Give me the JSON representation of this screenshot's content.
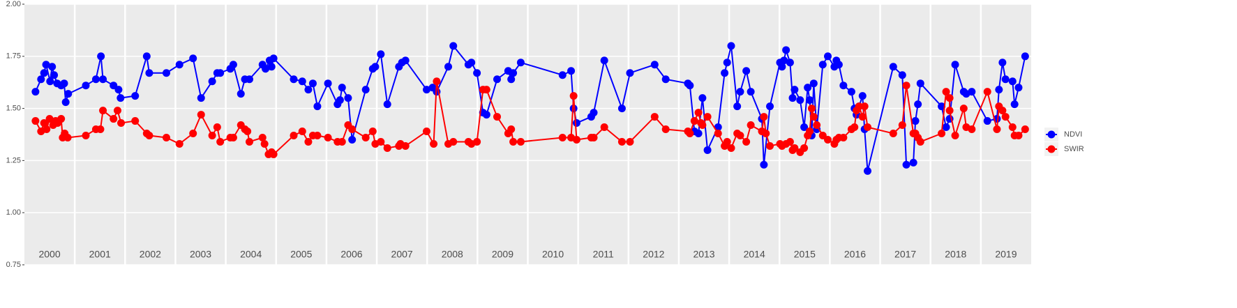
{
  "chart_data": {
    "type": "line",
    "xlim": [
      2000,
      2020
    ],
    "ylim": [
      0.75,
      2.0
    ],
    "yticks": [
      {
        "value": 0.75,
        "label": "0.75"
      },
      {
        "value": 1.0,
        "label": "1.00"
      },
      {
        "value": 1.25,
        "label": "1.25"
      },
      {
        "value": 1.5,
        "label": "1.50"
      },
      {
        "value": 1.75,
        "label": "1.75"
      },
      {
        "value": 2.0,
        "label": "2.00"
      }
    ],
    "xticks": [
      {
        "value": 2000.5,
        "label": "2000"
      },
      {
        "value": 2001.5,
        "label": "2001"
      },
      {
        "value": 2002.5,
        "label": "2002"
      },
      {
        "value": 2003.5,
        "label": "2003"
      },
      {
        "value": 2004.5,
        "label": "2004"
      },
      {
        "value": 2005.5,
        "label": "2005"
      },
      {
        "value": 2006.5,
        "label": "2006"
      },
      {
        "value": 2007.5,
        "label": "2007"
      },
      {
        "value": 2008.5,
        "label": "2008"
      },
      {
        "value": 2009.5,
        "label": "2009"
      },
      {
        "value": 2010.5,
        "label": "2010"
      },
      {
        "value": 2011.5,
        "label": "2011"
      },
      {
        "value": 2012.5,
        "label": "2012"
      },
      {
        "value": 2013.5,
        "label": "2013"
      },
      {
        "value": 2014.5,
        "label": "2014"
      },
      {
        "value": 2015.5,
        "label": "2015"
      },
      {
        "value": 2016.5,
        "label": "2016"
      },
      {
        "value": 2017.5,
        "label": "2017"
      },
      {
        "value": 2018.5,
        "label": "2018"
      },
      {
        "value": 2019.5,
        "label": "2019"
      }
    ],
    "xgrid": [
      2001,
      2002,
      2003,
      2004,
      2005,
      2006,
      2007,
      2008,
      2009,
      2010,
      2011,
      2012,
      2013,
      2014,
      2015,
      2016,
      2017,
      2018,
      2019
    ],
    "grid": true,
    "legend": "right",
    "series": [
      {
        "name": "NDVI",
        "color": "#0000ff",
        "x": [
          2000.22,
          2000.33,
          2000.39,
          2000.43,
          2000.51,
          2000.55,
          2000.59,
          2000.65,
          2000.73,
          2000.79,
          2000.82,
          2000.87,
          2001.22,
          2001.42,
          2001.52,
          2001.56,
          2001.77,
          2001.87,
          2001.91,
          2002.2,
          2002.43,
          2002.48,
          2002.82,
          2003.08,
          2003.35,
          2003.51,
          2003.73,
          2003.83,
          2003.89,
          2004.09,
          2004.15,
          2004.3,
          2004.38,
          2004.47,
          2004.73,
          2004.79,
          2004.87,
          2004.91,
          2004.95,
          2005.35,
          2005.52,
          2005.64,
          2005.73,
          2005.82,
          2006.03,
          2006.22,
          2006.27,
          2006.31,
          2006.43,
          2006.51,
          2006.78,
          2006.92,
          2006.97,
          2007.08,
          2007.21,
          2007.44,
          2007.5,
          2007.57,
          2007.99,
          2008.11,
          2008.19,
          2008.42,
          2008.52,
          2008.82,
          2008.88,
          2008.99,
          2009.11,
          2009.18,
          2009.39,
          2009.61,
          2009.67,
          2009.71,
          2009.86,
          2010.69,
          2010.86,
          2010.91,
          2010.97,
          2011.26,
          2011.31,
          2011.52,
          2011.87,
          2012.03,
          2012.52,
          2012.74,
          2013.18,
          2013.22,
          2013.31,
          2013.39,
          2013.47,
          2013.57,
          2013.78,
          2013.91,
          2013.96,
          2014.04,
          2014.16,
          2014.22,
          2014.34,
          2014.43,
          2014.65,
          2014.69,
          2014.81,
          2015.01,
          2015.05,
          2015.09,
          2015.13,
          2015.21,
          2015.26,
          2015.3,
          2015.41,
          2015.49,
          2015.56,
          2015.6,
          2015.64,
          2015.68,
          2015.74,
          2015.86,
          2015.96,
          2016.09,
          2016.13,
          2016.18,
          2016.27,
          2016.43,
          2016.49,
          2016.53,
          2016.58,
          2016.65,
          2016.69,
          2016.75,
          2017.26,
          2017.44,
          2017.52,
          2017.66,
          2017.7,
          2017.75,
          2017.8,
          2018.22,
          2018.31,
          2018.38,
          2018.49,
          2018.66,
          2018.71,
          2018.82,
          2019.13,
          2019.32,
          2019.36,
          2019.43,
          2019.49,
          2019.63,
          2019.67,
          2019.75,
          2019.88
        ],
        "values": [
          1.58,
          1.64,
          1.67,
          1.71,
          1.63,
          1.7,
          1.66,
          1.62,
          1.61,
          1.62,
          1.53,
          1.57,
          1.61,
          1.64,
          1.75,
          1.64,
          1.61,
          1.59,
          1.55,
          1.56,
          1.75,
          1.67,
          1.67,
          1.71,
          1.74,
          1.55,
          1.63,
          1.67,
          1.67,
          1.69,
          1.71,
          1.57,
          1.64,
          1.64,
          1.71,
          1.69,
          1.73,
          1.7,
          1.74,
          1.64,
          1.63,
          1.59,
          1.62,
          1.51,
          1.62,
          1.52,
          1.54,
          1.6,
          1.55,
          1.35,
          1.59,
          1.69,
          1.7,
          1.76,
          1.52,
          1.7,
          1.72,
          1.73,
          1.59,
          1.6,
          1.58,
          1.7,
          1.8,
          1.71,
          1.72,
          1.67,
          1.48,
          1.47,
          1.64,
          1.68,
          1.64,
          1.67,
          1.72,
          1.66,
          1.68,
          1.5,
          1.43,
          1.46,
          1.48,
          1.73,
          1.5,
          1.67,
          1.71,
          1.64,
          1.62,
          1.61,
          1.39,
          1.38,
          1.55,
          1.3,
          1.41,
          1.67,
          1.72,
          1.8,
          1.51,
          1.58,
          1.68,
          1.58,
          1.45,
          1.23,
          1.51,
          1.72,
          1.7,
          1.73,
          1.78,
          1.72,
          1.55,
          1.59,
          1.54,
          1.41,
          1.6,
          1.54,
          1.37,
          1.62,
          1.4,
          1.71,
          1.75,
          1.7,
          1.73,
          1.71,
          1.61,
          1.58,
          1.5,
          1.47,
          1.51,
          1.56,
          1.4,
          1.2,
          1.7,
          1.66,
          1.23,
          1.24,
          1.44,
          1.52,
          1.62,
          1.51,
          1.41,
          1.45,
          1.71,
          1.58,
          1.57,
          1.58,
          1.44,
          1.45,
          1.59,
          1.72,
          1.64,
          1.63,
          1.52,
          1.6,
          1.75
        ]
      },
      {
        "name": "SWIR",
        "color": "#ff0000",
        "x": [
          2000.22,
          2000.33,
          2000.39,
          2000.44,
          2000.5,
          2000.57,
          2000.62,
          2000.66,
          2000.73,
          2000.76,
          2000.8,
          2000.86,
          2001.22,
          2001.42,
          2001.51,
          2001.56,
          2001.77,
          2001.85,
          2001.92,
          2002.2,
          2002.43,
          2002.48,
          2002.82,
          2003.08,
          2003.35,
          2003.51,
          2003.73,
          2003.83,
          2003.89,
          2004.09,
          2004.15,
          2004.3,
          2004.38,
          2004.43,
          2004.47,
          2004.73,
          2004.77,
          2004.85,
          2004.91,
          2004.95,
          2005.35,
          2005.52,
          2005.64,
          2005.73,
          2005.82,
          2006.03,
          2006.22,
          2006.31,
          2006.43,
          2006.51,
          2006.78,
          2006.92,
          2006.97,
          2007.08,
          2007.21,
          2007.44,
          2007.47,
          2007.57,
          2007.99,
          2008.13,
          2008.19,
          2008.42,
          2008.52,
          2008.82,
          2008.88,
          2008.99,
          2009.11,
          2009.18,
          2009.39,
          2009.61,
          2009.67,
          2009.71,
          2009.86,
          2010.69,
          2010.86,
          2010.91,
          2010.97,
          2011.26,
          2011.31,
          2011.52,
          2011.87,
          2012.03,
          2012.52,
          2012.74,
          2013.18,
          2013.22,
          2013.31,
          2013.39,
          2013.44,
          2013.47,
          2013.57,
          2013.78,
          2013.91,
          2013.96,
          2014.04,
          2014.16,
          2014.22,
          2014.34,
          2014.43,
          2014.65,
          2014.69,
          2014.73,
          2014.81,
          2015.01,
          2015.05,
          2015.13,
          2015.21,
          2015.26,
          2015.3,
          2015.41,
          2015.49,
          2015.56,
          2015.6,
          2015.64,
          2015.68,
          2015.74,
          2015.86,
          2015.96,
          2016.09,
          2016.13,
          2016.18,
          2016.27,
          2016.43,
          2016.49,
          2016.53,
          2016.58,
          2016.65,
          2016.69,
          2016.75,
          2017.26,
          2017.44,
          2017.52,
          2017.66,
          2017.7,
          2017.75,
          2017.8,
          2018.22,
          2018.31,
          2018.38,
          2018.38,
          2018.49,
          2018.66,
          2018.71,
          2018.82,
          2019.13,
          2019.32,
          2019.36,
          2019.43,
          2019.49,
          2019.63,
          2019.67,
          2019.75,
          2019.88
        ],
        "values": [
          1.44,
          1.39,
          1.43,
          1.4,
          1.45,
          1.42,
          1.44,
          1.43,
          1.45,
          1.36,
          1.38,
          1.36,
          1.37,
          1.4,
          1.4,
          1.49,
          1.45,
          1.49,
          1.43,
          1.44,
          1.38,
          1.37,
          1.36,
          1.33,
          1.38,
          1.47,
          1.37,
          1.41,
          1.34,
          1.36,
          1.36,
          1.42,
          1.4,
          1.39,
          1.34,
          1.36,
          1.33,
          1.28,
          1.29,
          1.28,
          1.37,
          1.39,
          1.34,
          1.37,
          1.37,
          1.36,
          1.34,
          1.34,
          1.42,
          1.4,
          1.36,
          1.39,
          1.33,
          1.34,
          1.31,
          1.32,
          1.33,
          1.32,
          1.39,
          1.33,
          1.63,
          1.33,
          1.34,
          1.34,
          1.33,
          1.34,
          1.59,
          1.59,
          1.46,
          1.38,
          1.4,
          1.34,
          1.34,
          1.36,
          1.36,
          1.56,
          1.35,
          1.36,
          1.36,
          1.41,
          1.34,
          1.34,
          1.46,
          1.4,
          1.39,
          1.38,
          1.44,
          1.48,
          1.43,
          1.42,
          1.46,
          1.38,
          1.32,
          1.34,
          1.31,
          1.38,
          1.37,
          1.34,
          1.42,
          1.39,
          1.46,
          1.38,
          1.32,
          1.33,
          1.32,
          1.33,
          1.34,
          1.3,
          1.31,
          1.29,
          1.31,
          1.37,
          1.39,
          1.5,
          1.46,
          1.42,
          1.37,
          1.35,
          1.33,
          1.35,
          1.36,
          1.36,
          1.4,
          1.41,
          1.49,
          1.51,
          1.46,
          1.51,
          1.41,
          1.38,
          1.42,
          1.61,
          1.38,
          1.38,
          1.36,
          1.34,
          1.38,
          1.58,
          1.55,
          1.49,
          1.37,
          1.5,
          1.41,
          1.4,
          1.58,
          1.4,
          1.51,
          1.49,
          1.46,
          1.41,
          1.37,
          1.37,
          1.4
        ]
      }
    ]
  }
}
